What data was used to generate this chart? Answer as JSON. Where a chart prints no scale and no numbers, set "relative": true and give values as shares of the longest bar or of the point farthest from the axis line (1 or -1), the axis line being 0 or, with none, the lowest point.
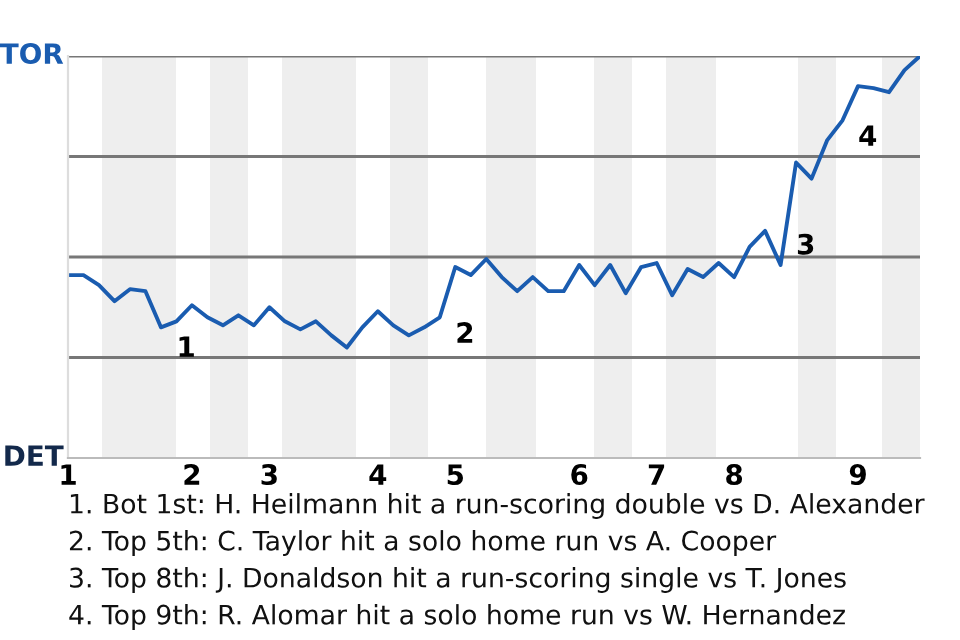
{
  "chart_data": {
    "type": "line",
    "relative": true,
    "categories": [
      "1",
      null,
      null,
      null,
      null,
      null,
      null,
      null,
      "2",
      null,
      null,
      null,
      null,
      "3",
      null,
      null,
      null,
      null,
      null,
      null,
      "4",
      null,
      null,
      null,
      null,
      "5",
      null,
      null,
      null,
      null,
      null,
      null,
      null,
      "6",
      null,
      null,
      null,
      null,
      "7",
      null,
      null,
      null,
      null,
      "8",
      null,
      null,
      null,
      null,
      null,
      null,
      null,
      "9",
      null,
      null,
      null,
      null
    ],
    "series": [
      {
        "color": "#1a5cb0",
        "values": [
          0.455,
          0.455,
          0.43,
          0.39,
          0.42,
          0.415,
          0.325,
          0.34,
          0.38,
          0.35,
          0.33,
          0.355,
          0.33,
          0.375,
          0.34,
          0.32,
          0.34,
          0.305,
          0.275,
          0.325,
          0.365,
          0.33,
          0.305,
          0.325,
          0.35,
          0.475,
          0.455,
          0.495,
          0.45,
          0.415,
          0.45,
          0.415,
          0.415,
          0.48,
          0.43,
          0.48,
          0.41,
          0.475,
          0.485,
          0.405,
          0.47,
          0.45,
          0.485,
          0.45,
          0.525,
          0.565,
          0.48,
          0.735,
          0.695,
          0.79,
          0.84,
          0.925,
          0.92,
          0.91,
          0.965,
          1.0
        ]
      }
    ],
    "annotations": [
      "TOR",
      "DET",
      "1",
      "2",
      "3",
      "4",
      "1. Bot 1st: H. Heilmann hit a run-scoring double vs D. Alexander",
      "2. Top 5th: C. Taylor hit a solo home run vs A. Cooper",
      "3. Top 8th: J. Donaldson hit a run-scoring single vs T. Jones",
      "4. Top 9th: R. Alomar hit a solo home run vs W. Hernandez"
    ]
  }
}
